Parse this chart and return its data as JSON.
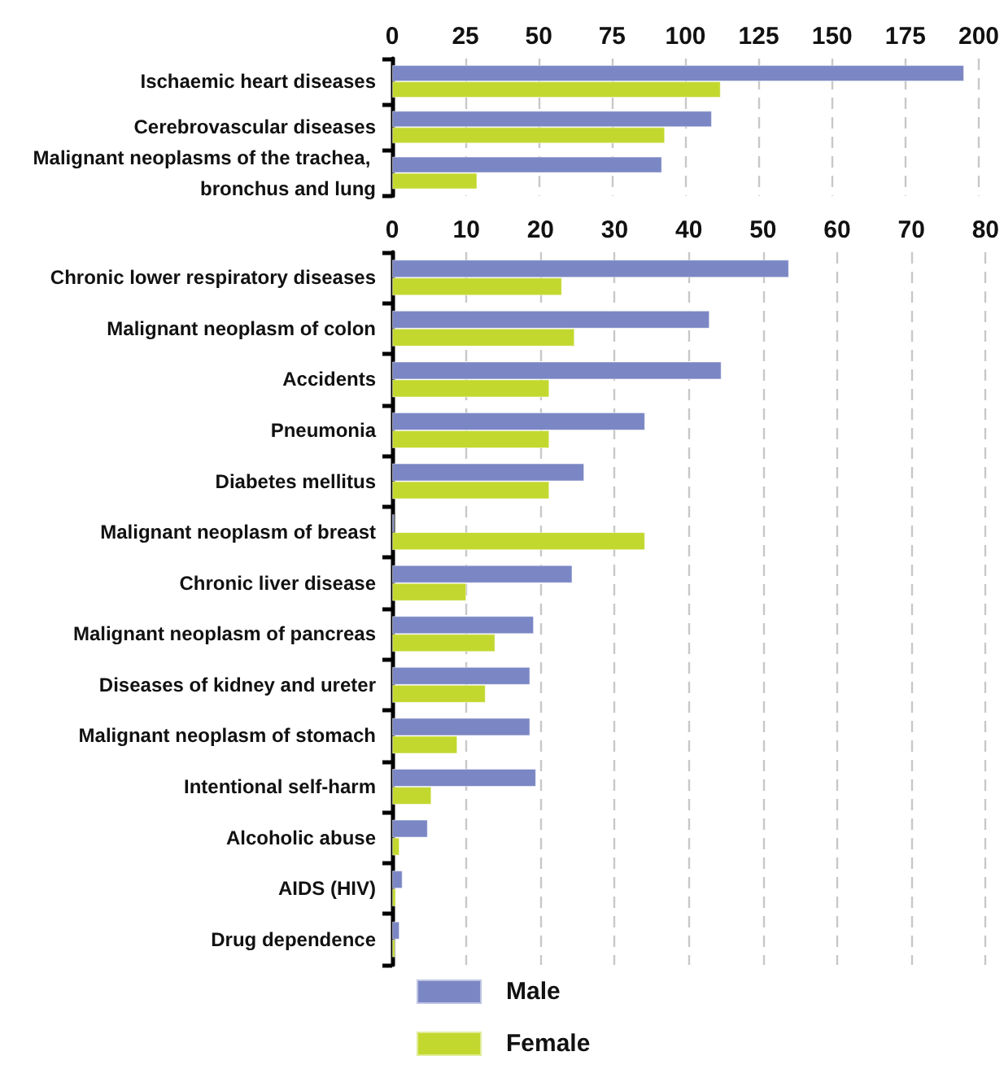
{
  "chart_data": [
    {
      "type": "bar",
      "orientation": "horizontal",
      "categories": [
        "Ischaemic heart diseases",
        "Cerebrovascular diseases",
        "Malignant neoplasms of the trachea, bronchus and lung"
      ],
      "series": [
        {
          "color": "#7b87c4",
          "values": [
            195,
            109,
            92
          ]
        },
        {
          "color": "#c3d82f",
          "values": [
            112,
            93,
            29
          ]
        }
      ],
      "xlim": [
        0,
        200
      ],
      "xticks": [
        0,
        25,
        50,
        75,
        100,
        125,
        150,
        175,
        200
      ],
      "grid": "x",
      "legend": false
    },
    {
      "type": "bar",
      "orientation": "horizontal",
      "categories": [
        "Chronic lower respiratory diseases",
        "Malignant neoplasm of colon",
        "Accidents",
        "Pneumonia",
        "Diabetes mellitus",
        "Malignant neoplasm of breast",
        "Chronic liver disease",
        "Malignant neoplasm of pancreas",
        "Diseases of kidney and ureter",
        "Malignant neoplasm of stomach",
        "Intentional self-harm",
        "Alcoholic abuse",
        "AIDS (HIV)",
        "Drug dependence"
      ],
      "series": [
        {
          "name": "Male",
          "color": "#7b87c4",
          "values": [
            53.5,
            42.8,
            44.4,
            34.1,
            25.9,
            0.3,
            24.3,
            19.1,
            18.6,
            18.6,
            19.4,
            4.8,
            1.4,
            1.0
          ]
        },
        {
          "name": "Female",
          "color": "#c3d82f",
          "values": [
            22.9,
            24.6,
            21.2,
            21.2,
            21.2,
            34.1,
            10.0,
            13.9,
            12.6,
            8.8,
            5.3,
            1.0,
            0.5,
            0.4
          ]
        }
      ],
      "xlim": [
        0,
        80
      ],
      "xticks": [
        0,
        10,
        20,
        30,
        40,
        50,
        60,
        70,
        80
      ],
      "grid": "x",
      "legend": "bottom"
    }
  ]
}
